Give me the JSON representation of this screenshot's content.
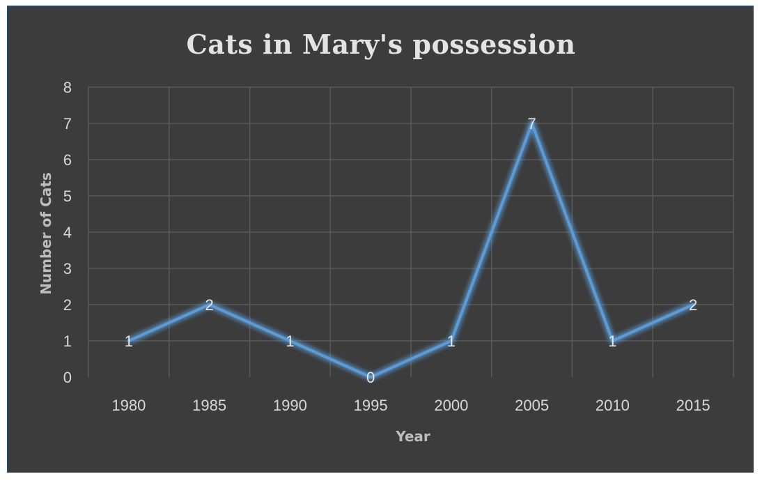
{
  "chart_data": {
    "type": "line",
    "title": "Cats in Mary's possession",
    "xlabel": "Year",
    "ylabel": "Number of Cats",
    "categories": [
      "1980",
      "1985",
      "1990",
      "1995",
      "2000",
      "2005",
      "2010",
      "2015"
    ],
    "series": [
      {
        "values": [
          1,
          2,
          1,
          0,
          1,
          7,
          1,
          2
        ]
      }
    ],
    "ylim": [
      0,
      8
    ],
    "yticks": [
      "0",
      "1",
      "2",
      "3",
      "4",
      "5",
      "6",
      "7",
      "8"
    ],
    "grid": true,
    "data_labels": true,
    "colors": {
      "background": "#3c3c3c",
      "line": "#5b9bd5",
      "grid": "#5a5a5a"
    }
  }
}
